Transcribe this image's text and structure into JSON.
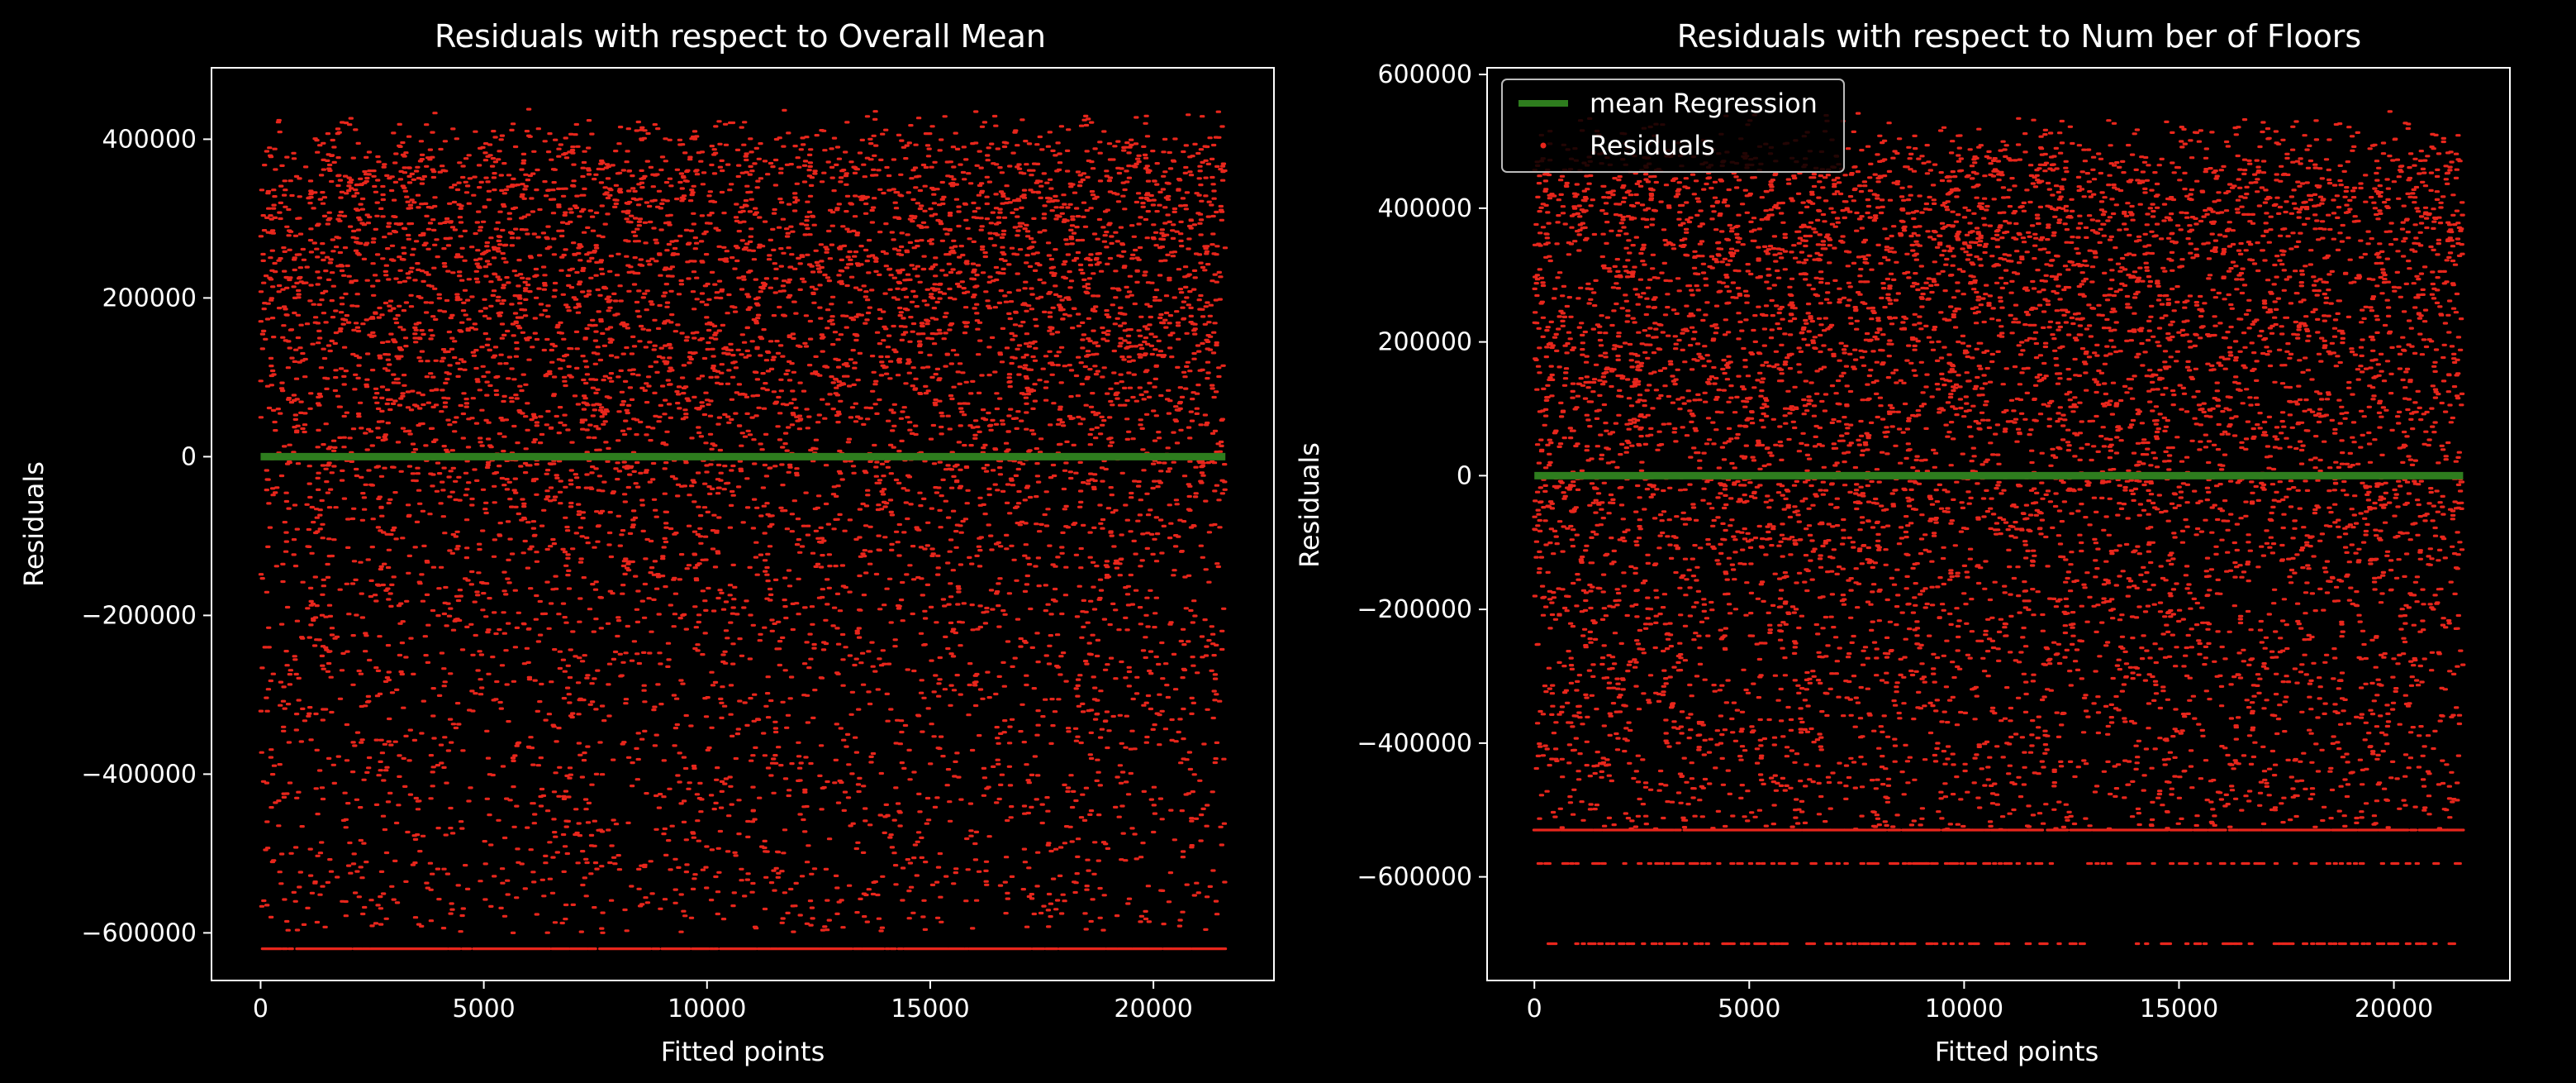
{
  "figure": {
    "background": "#000000",
    "axes_color": "#ffffff"
  },
  "chart_data": [
    {
      "type": "scatter",
      "title": "Residuals with respect to Overall Mean",
      "xlabel": "Fitted points",
      "ylabel": "Residuals",
      "xlim": [
        -1100,
        22700
      ],
      "ylim": [
        -660000,
        490000
      ],
      "xticks": [
        0,
        5000,
        10000,
        15000,
        20000
      ],
      "xtick_labels": [
        "0",
        "5000",
        "10000",
        "15000",
        "20000"
      ],
      "yticks": [
        -600000,
        -400000,
        -200000,
        0,
        200000,
        400000
      ],
      "ytick_labels": [
        "−600000",
        "−400000",
        "−200000",
        "0",
        "200000",
        "400000"
      ],
      "grid": false,
      "legend": null,
      "series": [
        {
          "kind": "points",
          "color": "#e8261c",
          "x_range": [
            0,
            21612
          ],
          "approx_count": 21613,
          "floor_line": -620000,
          "upper_cluster_range": [
            0,
            440000
          ],
          "lower_range": [
            -600000,
            0
          ]
        },
        {
          "kind": "line",
          "color": "#2e7d1e",
          "x": [
            0,
            21612
          ],
          "y": [
            0,
            0
          ]
        }
      ]
    },
    {
      "type": "scatter",
      "title": "Residuals with respect to Num ber of Floors",
      "xlabel": "Fitted points",
      "ylabel": "Residuals",
      "xlim": [
        -1100,
        22700
      ],
      "ylim": [
        -755000,
        610000
      ],
      "xticks": [
        0,
        5000,
        10000,
        15000,
        20000
      ],
      "xtick_labels": [
        "0",
        "5000",
        "10000",
        "15000",
        "20000"
      ],
      "yticks": [
        -600000,
        -400000,
        -200000,
        0,
        200000,
        400000,
        600000
      ],
      "ytick_labels": [
        "−600000",
        "−400000",
        "−200000",
        "0",
        "200000",
        "400000",
        "600000"
      ],
      "grid": false,
      "legend": {
        "position": "top-left",
        "entries": [
          {
            "label": "mean Regression",
            "marker": "line",
            "color": "#2e7d1e"
          },
          {
            "label": "Residuals",
            "marker": "dot",
            "color": "#e8261c"
          }
        ]
      },
      "series": [
        {
          "name": "Residuals",
          "kind": "points",
          "color": "#e8261c",
          "x_range": [
            0,
            21612
          ],
          "approx_count": 21613,
          "floor_lines": [
            -530000,
            -580000,
            -700000
          ],
          "upper_cluster_range": [
            0,
            550000
          ],
          "lower_range": [
            -530000,
            0
          ]
        },
        {
          "name": "mean Regression",
          "kind": "line",
          "color": "#2e7d1e",
          "x": [
            0,
            21612
          ],
          "y": [
            0,
            0
          ]
        }
      ]
    }
  ]
}
